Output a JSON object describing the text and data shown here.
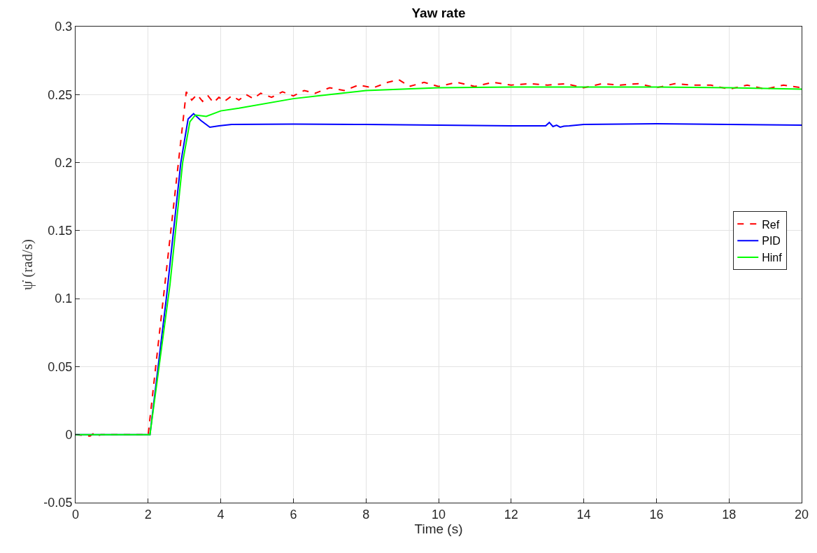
{
  "chart_data": {
    "type": "line",
    "title": "Yaw rate",
    "xlabel": "Time (s)",
    "ylabel": "ψ̇ (rad/s)",
    "xlim": [
      0,
      20
    ],
    "xticks": [
      0,
      2,
      4,
      6,
      8,
      10,
      12,
      14,
      16,
      18,
      20
    ],
    "ylim": [
      -0.05,
      0.3
    ],
    "yticks": [
      -0.05,
      0,
      0.05,
      0.1,
      0.15,
      0.2,
      0.25,
      0.3
    ],
    "grid": true,
    "legend": "right",
    "marker": "none",
    "series": [
      {
        "name": "Ref",
        "color": "#ff0000",
        "line_style": "dashed",
        "x": [
          0,
          0.4,
          0.5,
          0.6,
          0.7,
          2.0,
          2.5,
          3.05,
          3.2,
          3.35,
          3.5,
          3.65,
          3.8,
          3.95,
          4.1,
          4.3,
          4.5,
          4.7,
          4.9,
          5.1,
          5.4,
          5.7,
          6.0,
          6.3,
          6.6,
          7.0,
          7.4,
          7.8,
          8.2,
          8.6,
          8.9,
          9.2,
          9.6,
          10,
          10.5,
          11,
          11.5,
          12,
          12.5,
          13,
          13.5,
          14,
          14.5,
          15,
          15.5,
          16,
          16.5,
          17,
          17.5,
          18,
          18.5,
          19,
          19.5,
          20
        ],
        "values": [
          0,
          -0.001,
          0.001,
          -0.001,
          0,
          0,
          0.12,
          0.252,
          0.246,
          0.25,
          0.245,
          0.249,
          0.244,
          0.248,
          0.245,
          0.249,
          0.246,
          0.25,
          0.247,
          0.251,
          0.248,
          0.252,
          0.249,
          0.253,
          0.251,
          0.255,
          0.253,
          0.257,
          0.255,
          0.259,
          0.261,
          0.256,
          0.259,
          0.256,
          0.259,
          0.256,
          0.259,
          0.257,
          0.258,
          0.257,
          0.258,
          0.255,
          0.258,
          0.257,
          0.258,
          0.255,
          0.258,
          0.257,
          0.257,
          0.254,
          0.257,
          0.254,
          0.257,
          0.255
        ]
      },
      {
        "name": "PID",
        "color": "#0000ff",
        "line_style": "solid",
        "x": [
          0,
          2.05,
          2.5,
          2.9,
          3.1,
          3.25,
          3.45,
          3.7,
          3.95,
          4.3,
          6,
          8,
          10,
          12,
          12.95,
          13.05,
          13.15,
          13.25,
          13.35,
          13.45,
          13.6,
          14,
          16,
          18,
          20
        ],
        "values": [
          0,
          0,
          0.1,
          0.2,
          0.232,
          0.236,
          0.231,
          0.226,
          0.227,
          0.228,
          0.2283,
          0.228,
          0.2275,
          0.227,
          0.227,
          0.2295,
          0.2265,
          0.2275,
          0.226,
          0.2268,
          0.227,
          0.228,
          0.2285,
          0.228,
          0.2275
        ]
      },
      {
        "name": "Hinf",
        "color": "#00ff00",
        "line_style": "solid",
        "x": [
          0,
          2.05,
          2.6,
          2.95,
          3.15,
          3.3,
          3.6,
          4.0,
          4.5,
          6,
          7,
          8,
          10,
          12,
          14,
          16,
          18,
          20
        ],
        "values": [
          0,
          0,
          0.11,
          0.2,
          0.23,
          0.235,
          0.234,
          0.238,
          0.24,
          0.247,
          0.25,
          0.253,
          0.255,
          0.2555,
          0.2555,
          0.2555,
          0.255,
          0.254
        ]
      }
    ]
  }
}
